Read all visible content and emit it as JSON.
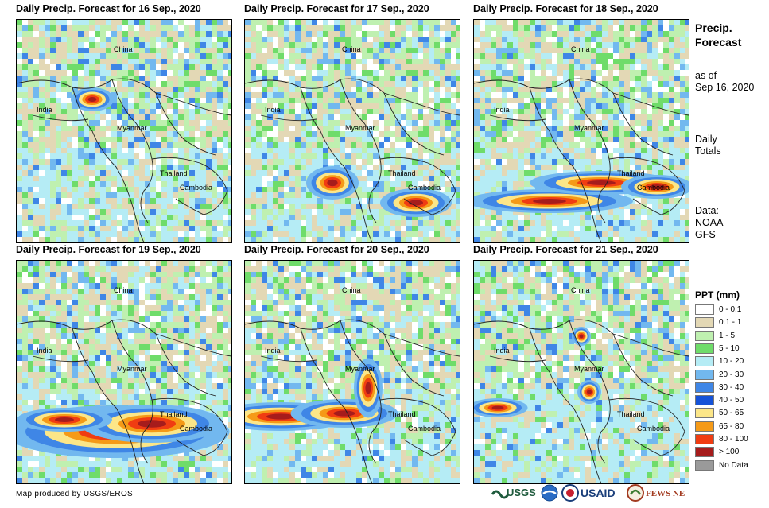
{
  "panels": [
    {
      "title": "Daily Precip. Forecast for 16 Sep., 2020"
    },
    {
      "title": "Daily Precip. Forecast for 17 Sep., 2020"
    },
    {
      "title": "Daily Precip. Forecast for 18 Sep., 2020"
    },
    {
      "title": "Daily Precip. Forecast for 19 Sep., 2020"
    },
    {
      "title": "Daily Precip. Forecast for 20 Sep., 2020"
    },
    {
      "title": "Daily Precip. Forecast for 21 Sep., 2020"
    }
  ],
  "place_labels": {
    "china": "China",
    "india": "India",
    "myanmar": "Myanmar",
    "thailand": "Thailand",
    "cambodia": "Cambodia"
  },
  "side": {
    "title_line1": "Precip.",
    "title_line2": "Forecast",
    "asof_line1": "as of",
    "asof_line2": "Sep 16, 2020",
    "totals_line1": "Daily",
    "totals_line2": "Totals",
    "data_line1": "Data:",
    "data_line2": "NOAA-",
    "data_line3": "GFS"
  },
  "legend": {
    "title": "PPT (mm)",
    "items": [
      {
        "label": "0 - 0.1",
        "color": "#ffffff"
      },
      {
        "label": "0.1 - 1",
        "color": "#e3d8b5"
      },
      {
        "label": "1 - 5",
        "color": "#bff0b0"
      },
      {
        "label": "5 - 10",
        "color": "#6fdc6a"
      },
      {
        "label": "10 - 20",
        "color": "#b5ecf5"
      },
      {
        "label": "20 - 30",
        "color": "#72b8ef"
      },
      {
        "label": "30 - 40",
        "color": "#3f86e6"
      },
      {
        "label": "40 - 50",
        "color": "#1552d8"
      },
      {
        "label": "50 - 65",
        "color": "#fce688"
      },
      {
        "label": "65 - 80",
        "color": "#f59a17"
      },
      {
        "label": "80 - 100",
        "color": "#f03c12"
      },
      {
        "label": "> 100",
        "color": "#a61c1c"
      },
      {
        "label": "No Data",
        "color": "#9a9a9a"
      }
    ]
  },
  "footer": {
    "credit": "Map produced by USGS/EROS"
  },
  "logos": {
    "usgs": "USGS",
    "usaid": "USAID",
    "fewsnet": "FEWS NET"
  }
}
